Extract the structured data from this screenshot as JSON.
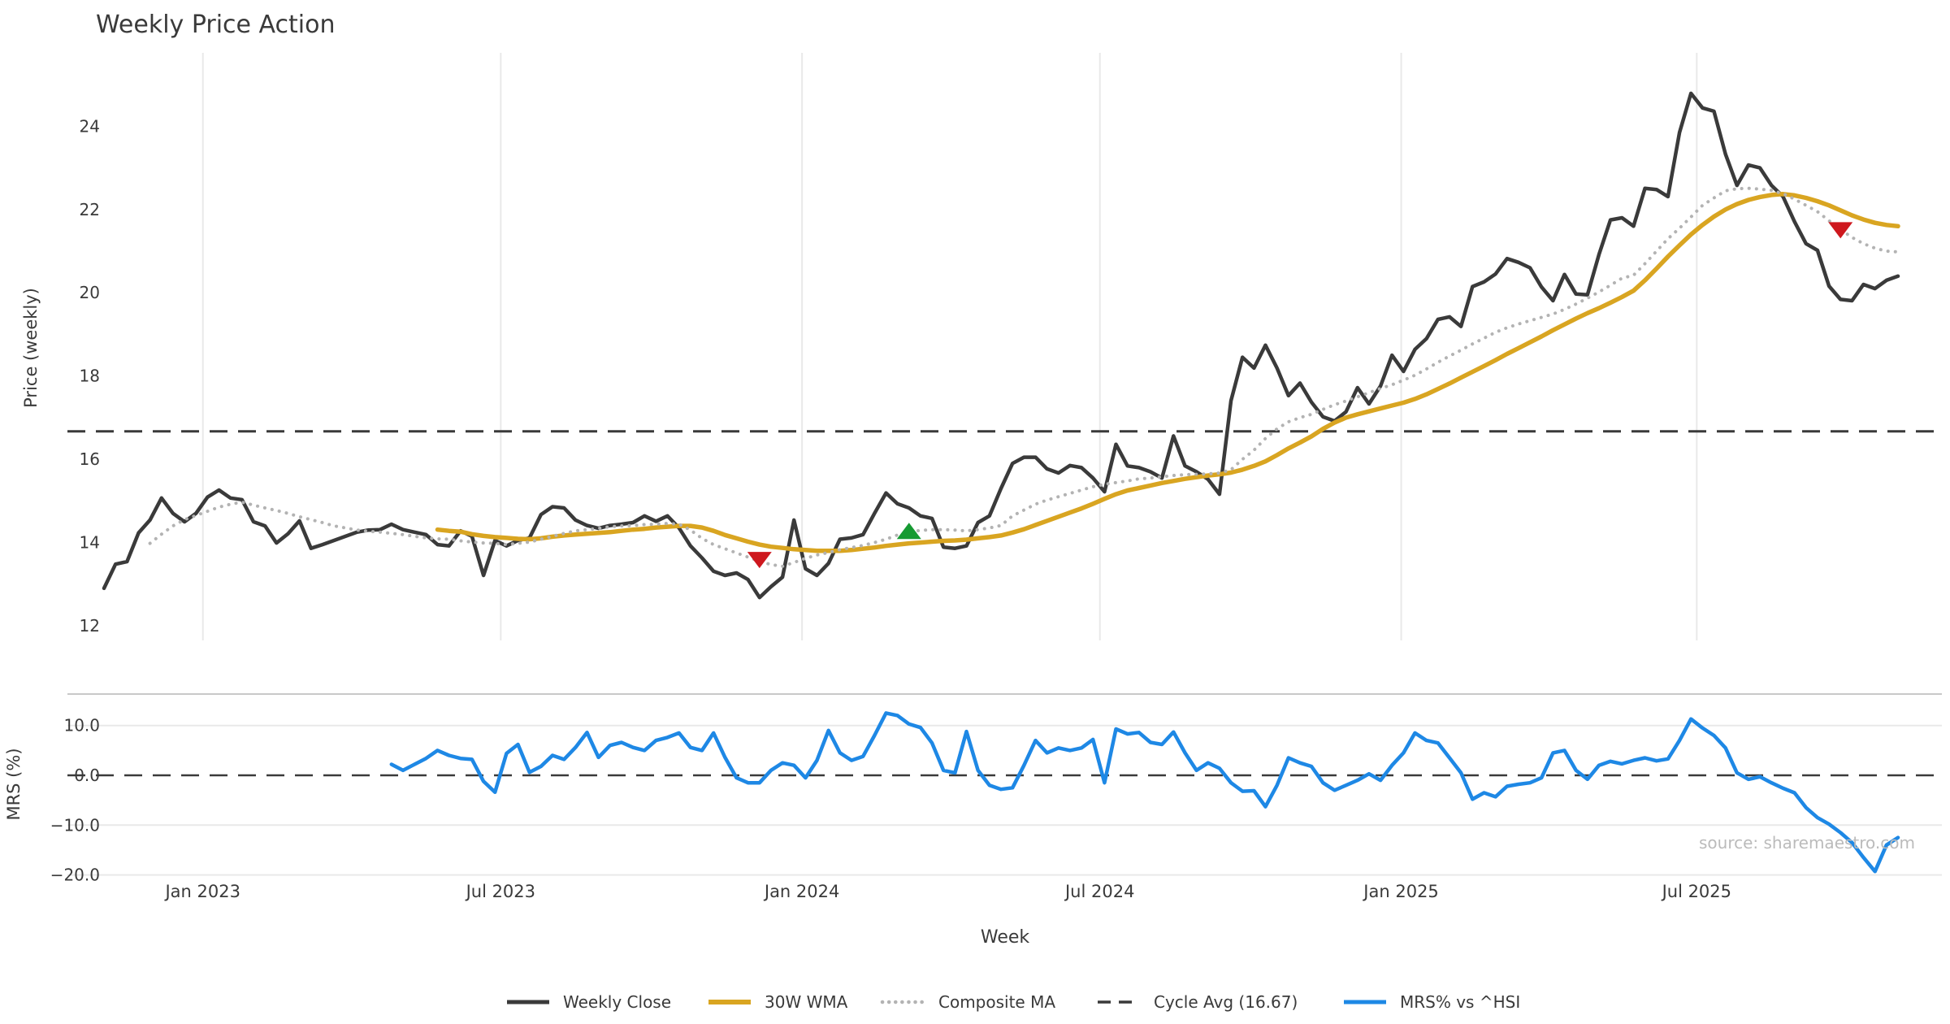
{
  "title": "Weekly Price Action",
  "source_note": "source: sharemaestro.com",
  "price_panel": {
    "ylabel": "Price (weekly)"
  },
  "mrs_panel": {
    "ylabel": "MRS (%)"
  },
  "x_axis": {
    "label": "Week"
  },
  "colors": {
    "weekly_close": "#3A3A3A",
    "wma30": "#D9A521",
    "composite": "#B3B3B3",
    "cycle_avg": "#3A3A3A",
    "mrs": "#1E88E5",
    "sell_marker": "#CE181E",
    "buy_marker": "#169A32",
    "gridline": "#E9E9E9",
    "spine": "#C9C9C9",
    "tick_text": "#3A3A3A",
    "source_text": "#BBBBBB"
  },
  "legend": [
    {
      "label": "Weekly Close",
      "color": "#3A3A3A",
      "style": "solid",
      "width": 5
    },
    {
      "label": "30W WMA",
      "color": "#D9A521",
      "style": "solid",
      "width": 6
    },
    {
      "label": "Composite MA",
      "color": "#B3B3B3",
      "style": "dotted",
      "width": 4.5
    },
    {
      "label": "Cycle Avg (16.67)",
      "color": "#3A3A3A",
      "style": "dashed",
      "width": 3.5
    },
    {
      "label": "MRS% vs ^HSI",
      "color": "#1E88E5",
      "style": "solid",
      "width": 5
    }
  ],
  "chart_data": {
    "type": "line",
    "x_unit": "week_index",
    "weeks_total": 157,
    "price_ylim": [
      11.62,
      25.77
    ],
    "mrs_ylim": [
      -21.4,
      16.3
    ],
    "price_y_ticks": [
      24,
      22,
      20,
      18,
      16,
      14,
      12
    ],
    "mrs_y_ticks": [
      {
        "value": 10,
        "label": "10.0"
      },
      {
        "value": 0,
        "label": "0.0"
      },
      {
        "value": -10,
        "label": "−10.0"
      },
      {
        "value": -20,
        "label": "−20.0"
      }
    ],
    "x_ticks": [
      {
        "week": 8.6,
        "label": "Jan 2023"
      },
      {
        "week": 34.5,
        "label": "Jul 2023"
      },
      {
        "week": 60.7,
        "label": "Jan 2024"
      },
      {
        "week": 86.6,
        "label": "Jul 2024"
      },
      {
        "week": 112.8,
        "label": "Jan 2025"
      },
      {
        "week": 138.5,
        "label": "Jul 2025"
      }
    ],
    "cycle_avg": {
      "name": "Cycle Avg (16.67)",
      "value": 16.67
    },
    "series": [
      {
        "name": "Weekly Close",
        "panel": "price",
        "style": "solid",
        "color": "#3A3A3A",
        "width": 4.5,
        "start_week": 0,
        "values": [
          12.9,
          13.48,
          13.54,
          14.23,
          14.54,
          15.07,
          14.7,
          14.5,
          14.7,
          15.09,
          15.26,
          15.07,
          15.03,
          14.5,
          14.4,
          13.99,
          14.21,
          14.52,
          13.86,
          13.95,
          14.05,
          14.15,
          14.25,
          14.3,
          14.31,
          14.44,
          14.31,
          14.25,
          14.19,
          13.95,
          13.92,
          14.28,
          14.15,
          13.21,
          14.05,
          13.92,
          14.05,
          14.11,
          14.67,
          14.86,
          14.83,
          14.54,
          14.41,
          14.34,
          14.41,
          14.44,
          14.48,
          14.64,
          14.51,
          14.64,
          14.35,
          13.92,
          13.63,
          13.31,
          13.21,
          13.27,
          13.11,
          12.68,
          12.94,
          13.17,
          14.54,
          13.37,
          13.21,
          13.5,
          14.08,
          14.11,
          14.19,
          14.7,
          15.19,
          14.93,
          14.83,
          14.64,
          14.58,
          13.89,
          13.86,
          13.92,
          14.48,
          14.64,
          15.3,
          15.9,
          16.05,
          16.05,
          15.77,
          15.67,
          15.85,
          15.8,
          15.55,
          15.22,
          16.36,
          15.84,
          15.8,
          15.7,
          15.55,
          16.56,
          15.84,
          15.7,
          15.52,
          15.16,
          17.41,
          18.45,
          18.19,
          18.74,
          18.19,
          17.53,
          17.83,
          17.37,
          17.02,
          16.92,
          17.14,
          17.72,
          17.33,
          17.76,
          18.5,
          18.11,
          18.64,
          18.9,
          19.36,
          19.42,
          19.19,
          20.15,
          20.26,
          20.45,
          20.82,
          20.73,
          20.6,
          20.14,
          19.81,
          20.44,
          19.97,
          19.95,
          20.92,
          21.75,
          21.8,
          21.6,
          22.51,
          22.48,
          22.31,
          23.85,
          24.79,
          24.44,
          24.36,
          23.33,
          22.58,
          23.07,
          23.0,
          22.58,
          22.31,
          21.71,
          21.18,
          21.02,
          20.16,
          19.84,
          19.81,
          20.2,
          20.1,
          20.3,
          20.4
        ]
      },
      {
        "name": "30W WMA",
        "panel": "price",
        "style": "solid",
        "color": "#D9A521",
        "width": 5.5,
        "start_week": 29,
        "values": [
          14.31,
          14.28,
          14.26,
          14.2,
          14.16,
          14.13,
          14.11,
          14.09,
          14.08,
          14.1,
          14.14,
          14.17,
          14.19,
          14.21,
          14.23,
          14.25,
          14.28,
          14.31,
          14.33,
          14.36,
          14.38,
          14.4,
          14.4,
          14.36,
          14.28,
          14.18,
          14.1,
          14.02,
          13.95,
          13.9,
          13.87,
          13.84,
          13.82,
          13.8,
          13.8,
          13.8,
          13.82,
          13.85,
          13.88,
          13.92,
          13.95,
          13.98,
          14.0,
          14.02,
          14.04,
          14.05,
          14.07,
          14.1,
          14.13,
          14.17,
          14.24,
          14.32,
          14.42,
          14.52,
          14.62,
          14.72,
          14.82,
          14.93,
          15.05,
          15.16,
          15.25,
          15.31,
          15.37,
          15.43,
          15.48,
          15.53,
          15.57,
          15.61,
          15.64,
          15.68,
          15.75,
          15.84,
          15.95,
          16.1,
          16.26,
          16.4,
          16.55,
          16.73,
          16.88,
          17.0,
          17.08,
          17.15,
          17.22,
          17.29,
          17.36,
          17.45,
          17.56,
          17.69,
          17.82,
          17.96,
          18.1,
          18.24,
          18.38,
          18.53,
          18.67,
          18.81,
          18.95,
          19.1,
          19.24,
          19.38,
          19.51,
          19.63,
          19.76,
          19.9,
          20.05,
          20.3,
          20.58,
          20.87,
          21.14,
          21.4,
          21.63,
          21.83,
          22.0,
          22.13,
          22.23,
          22.3,
          22.35,
          22.37,
          22.34,
          22.28,
          22.2,
          22.1,
          21.98,
          21.86,
          21.76,
          21.68,
          21.63,
          21.6
        ]
      },
      {
        "name": "Composite MA",
        "panel": "price",
        "style": "dotted",
        "color": "#B3B3B3",
        "width": 4,
        "start_week": 4,
        "values": [
          13.98,
          14.2,
          14.4,
          14.55,
          14.65,
          14.75,
          14.85,
          14.92,
          14.97,
          14.9,
          14.83,
          14.77,
          14.7,
          14.62,
          14.55,
          14.48,
          14.4,
          14.35,
          14.3,
          14.27,
          14.25,
          14.22,
          14.19,
          14.15,
          14.11,
          14.09,
          14.08,
          14.04,
          14.01,
          13.99,
          13.98,
          13.95,
          13.98,
          14.01,
          14.08,
          14.15,
          14.22,
          14.28,
          14.31,
          14.34,
          14.38,
          14.4,
          14.41,
          14.43,
          14.44,
          14.46,
          14.44,
          14.3,
          14.1,
          13.95,
          13.85,
          13.75,
          13.65,
          13.55,
          13.47,
          13.43,
          13.52,
          13.62,
          13.7,
          13.76,
          13.83,
          13.88,
          13.93,
          14.0,
          14.08,
          14.18,
          14.26,
          14.29,
          14.31,
          14.31,
          14.3,
          14.28,
          14.31,
          14.35,
          14.41,
          14.64,
          14.78,
          14.92,
          15.02,
          15.1,
          15.18,
          15.26,
          15.34,
          15.4,
          15.44,
          15.48,
          15.53,
          15.55,
          15.58,
          15.61,
          15.63,
          15.64,
          15.65,
          15.67,
          15.75,
          16.0,
          16.22,
          16.5,
          16.73,
          16.9,
          17.0,
          17.08,
          17.2,
          17.31,
          17.4,
          17.5,
          17.6,
          17.7,
          17.79,
          17.9,
          18.02,
          18.17,
          18.33,
          18.48,
          18.62,
          18.77,
          18.91,
          19.05,
          19.16,
          19.25,
          19.33,
          19.41,
          19.49,
          19.6,
          19.73,
          19.87,
          20.02,
          20.18,
          20.35,
          20.42,
          20.7,
          21.0,
          21.3,
          21.55,
          21.82,
          22.1,
          22.28,
          22.45,
          22.5,
          22.51,
          22.49,
          22.46,
          22.38,
          22.25,
          22.1,
          21.95,
          21.73,
          21.52,
          21.33,
          21.18,
          21.07,
          21.0,
          20.98
        ]
      },
      {
        "name": "MRS% vs ^HSI",
        "panel": "mrs",
        "style": "solid",
        "color": "#1E88E5",
        "width": 4.5,
        "start_week": 25,
        "values": [
          2.2,
          1.0,
          2.2,
          3.4,
          5.0,
          4.0,
          3.4,
          3.2,
          -1.2,
          -3.4,
          4.4,
          6.2,
          0.6,
          1.8,
          4.0,
          3.2,
          5.6,
          8.6,
          3.6,
          6.0,
          6.6,
          5.6,
          5.0,
          7.0,
          7.6,
          8.5,
          5.6,
          5.0,
          8.5,
          3.6,
          -0.5,
          -1.5,
          -1.5,
          1.0,
          2.5,
          2.0,
          -0.5,
          3.0,
          9.0,
          4.5,
          3.0,
          3.8,
          8.0,
          12.5,
          12.0,
          10.3,
          9.6,
          6.5,
          1.0,
          0.5,
          8.8,
          1.0,
          -2.0,
          -2.8,
          -2.5,
          2.0,
          7.0,
          4.5,
          5.5,
          5.0,
          5.5,
          7.2,
          -1.5,
          9.3,
          8.3,
          8.6,
          6.6,
          6.2,
          8.7,
          4.5,
          1.0,
          2.5,
          1.4,
          -1.5,
          -3.2,
          -3.1,
          -6.3,
          -2.0,
          3.5,
          2.5,
          1.8,
          -1.5,
          -3.0,
          -2.0,
          -1.0,
          0.3,
          -1.0,
          2.0,
          4.5,
          8.5,
          7.0,
          6.5,
          3.5,
          0.5,
          -4.8,
          -3.5,
          -4.3,
          -2.2,
          -1.8,
          -1.5,
          -0.5,
          4.5,
          5.0,
          1.0,
          -0.8,
          2.0,
          2.8,
          2.3,
          3.0,
          3.5,
          2.9,
          3.3,
          7.0,
          11.3,
          9.5,
          8.0,
          5.5,
          0.5,
          -0.8,
          -0.3,
          -1.5,
          -2.6,
          -3.5,
          -6.5,
          -8.5,
          -9.8,
          -11.5,
          -13.5,
          -16.5,
          -19.3,
          -14.0,
          -12.5
        ]
      }
    ],
    "markers": [
      {
        "type": "sell",
        "week": 57,
        "value": 13.58,
        "color": "#CE181E"
      },
      {
        "type": "buy",
        "week": 70,
        "value": 14.28,
        "color": "#169A32"
      },
      {
        "type": "sell",
        "week": 151,
        "value": 21.5,
        "color": "#CE181E"
      }
    ]
  }
}
